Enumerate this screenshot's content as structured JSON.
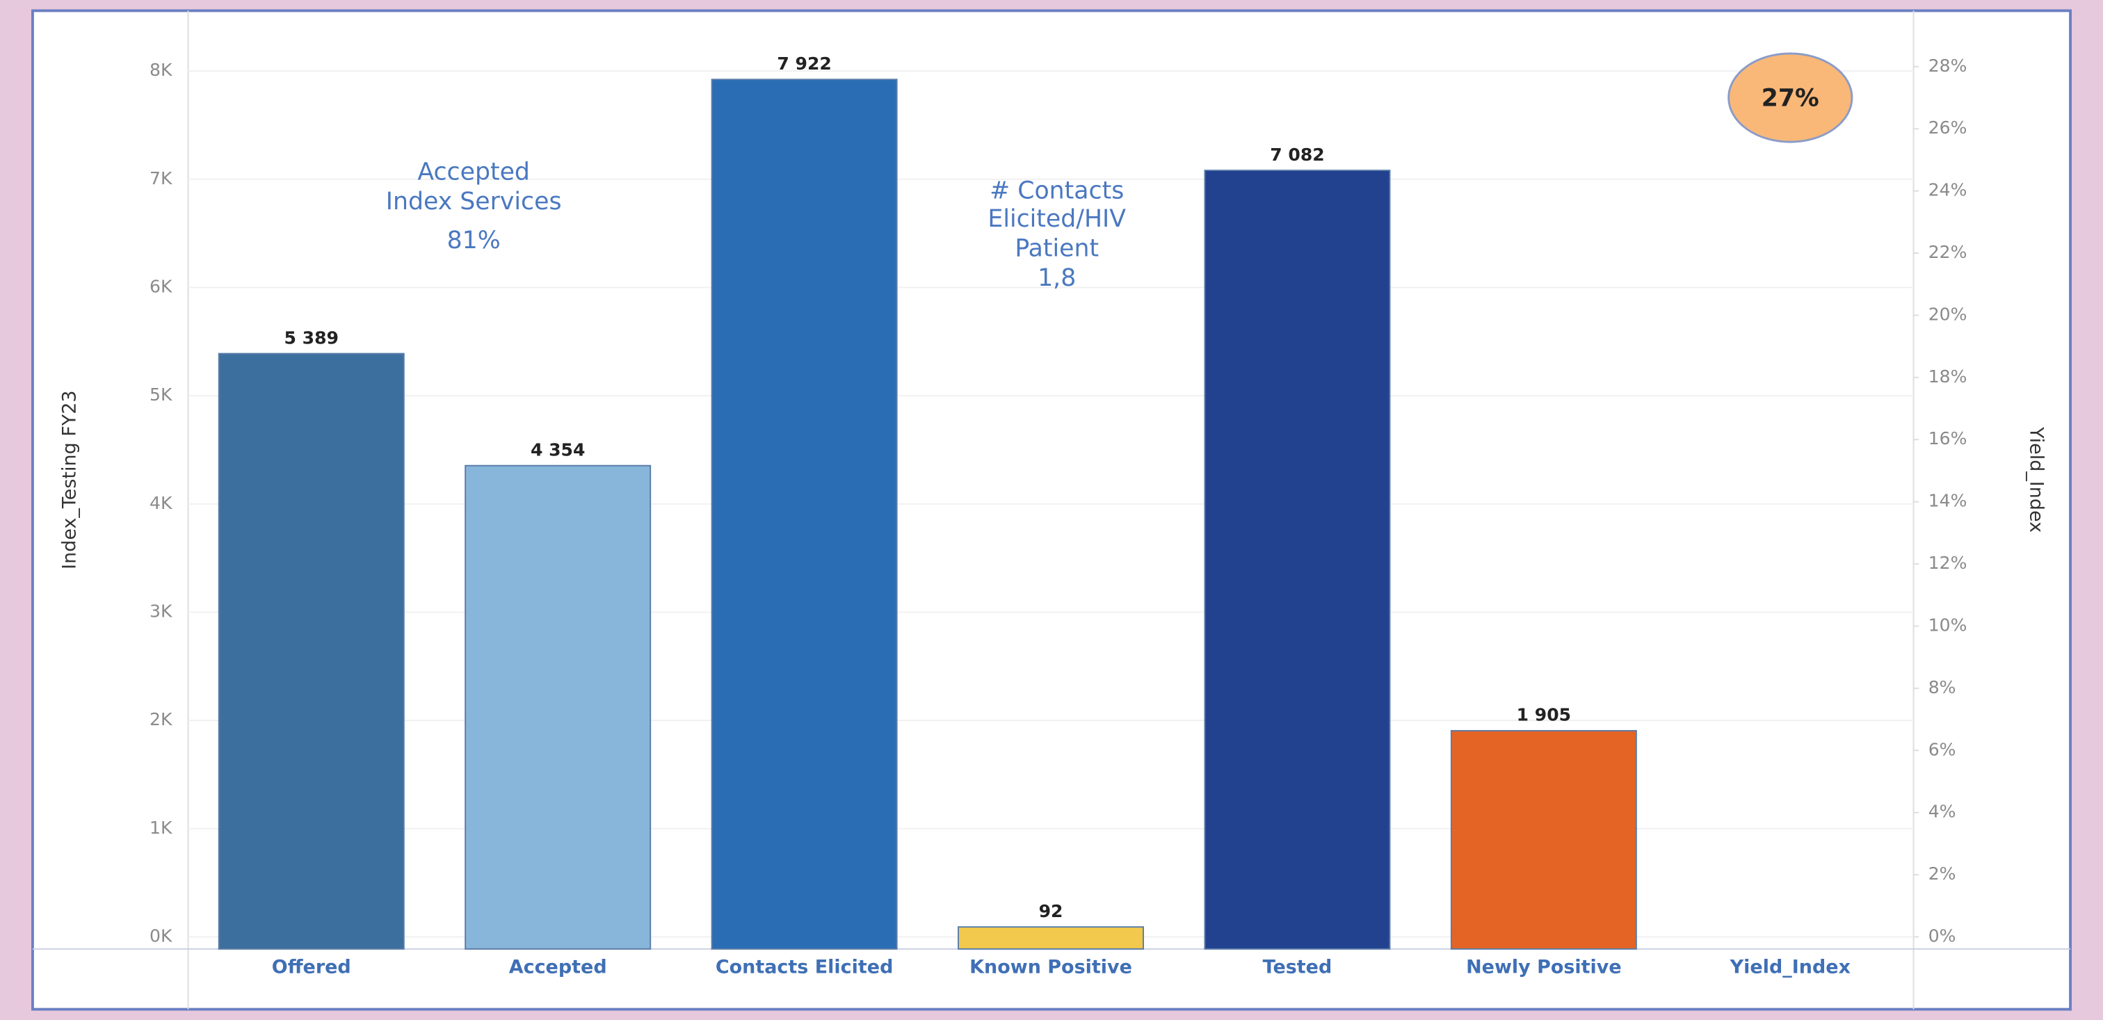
{
  "chart_data": {
    "type": "bar",
    "categories": [
      "Offered",
      "Accepted",
      "Contacts Elicited",
      "Known Positive",
      "Tested",
      "Newly Positive",
      "Yield_Index"
    ],
    "values": [
      5389,
      4354,
      7922,
      92,
      7082,
      1905,
      null
    ],
    "value_labels": [
      "5 389",
      "4 354",
      "7 922",
      "92",
      "7 082",
      "1 905",
      null
    ],
    "colors": [
      "#3d6f9e",
      "#88b6db",
      "#2a6db5",
      "#f2c94c",
      "#22418f",
      "#e36424",
      null
    ],
    "yield": {
      "value": 27,
      "label": "27%",
      "axis": "y2",
      "color": "#f9b878"
    },
    "ylabel": "Index_Testing FY23",
    "y2label": "Yield_Index",
    "ylim": [
      0,
      8500
    ],
    "yticks": [
      {
        "value": 0,
        "label": "0K"
      },
      {
        "value": 1000,
        "label": "1K"
      },
      {
        "value": 2000,
        "label": "2K"
      },
      {
        "value": 3000,
        "label": "3K"
      },
      {
        "value": 4000,
        "label": "4K"
      },
      {
        "value": 5000,
        "label": "5K"
      },
      {
        "value": 6000,
        "label": "6K"
      },
      {
        "value": 7000,
        "label": "7K"
      },
      {
        "value": 8000,
        "label": "8K"
      }
    ],
    "y2lim": [
      0,
      29.6
    ],
    "y2ticks": [
      {
        "value": 0,
        "label": "0%"
      },
      {
        "value": 2,
        "label": "2%"
      },
      {
        "value": 4,
        "label": "4%"
      },
      {
        "value": 6,
        "label": "6%"
      },
      {
        "value": 8,
        "label": "8%"
      },
      {
        "value": 10,
        "label": "10%"
      },
      {
        "value": 12,
        "label": "12%"
      },
      {
        "value": 14,
        "label": "14%"
      },
      {
        "value": 16,
        "label": "16%"
      },
      {
        "value": 18,
        "label": "18%"
      },
      {
        "value": 20,
        "label": "20%"
      },
      {
        "value": 22,
        "label": "22%"
      },
      {
        "value": 24,
        "label": "24%"
      },
      {
        "value": 26,
        "label": "26%"
      },
      {
        "value": 28,
        "label": "28%"
      }
    ],
    "grid": true,
    "annotations": [
      {
        "lines": [
          "Accepted",
          "Index Services",
          "81%"
        ]
      },
      {
        "lines": [
          "#  Contacts",
          "Elicited/HIV",
          "Patient",
          "1,8"
        ]
      }
    ]
  }
}
